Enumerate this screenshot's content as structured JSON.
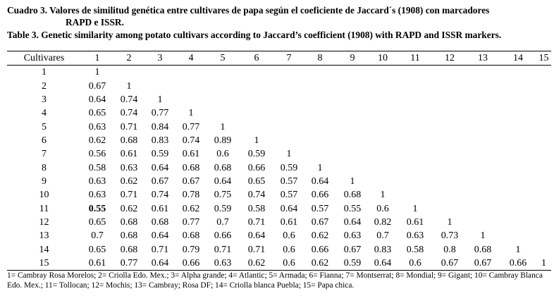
{
  "caption": {
    "es_line1": "Cuadro 3. Valores de similitud genética entre cultivares de papa según el coeficiente de Jaccard´s (1908) con marcadores",
    "es_line2": "RAPD e ISSR.",
    "en": "Table 3. Genetic similarity among potato cultivars according to Jaccard’s coefficient (1908) with RAPD and ISSR markers."
  },
  "table": {
    "row_header_label": "Cultivares",
    "column_headers": [
      "1",
      "2",
      "3",
      "4",
      "5",
      "6",
      "7",
      "8",
      "9",
      "10",
      "11",
      "12",
      "13",
      "14",
      "15"
    ],
    "rows": [
      {
        "label": "1",
        "values": [
          "1"
        ]
      },
      {
        "label": "2",
        "values": [
          "0.67",
          "1"
        ]
      },
      {
        "label": "3",
        "values": [
          "0.64",
          "0.74",
          "1"
        ]
      },
      {
        "label": "4",
        "values": [
          "0.65",
          "0.74",
          "0.77",
          "1"
        ]
      },
      {
        "label": "5",
        "values": [
          "0.63",
          "0.71",
          "0.84",
          "0.77",
          "1"
        ]
      },
      {
        "label": "6",
        "values": [
          "0.62",
          "0.68",
          "0.83",
          "0.74",
          "0.89",
          "1"
        ]
      },
      {
        "label": "7",
        "values": [
          "0.56",
          "0.61",
          "0.59",
          "0.61",
          "0.6",
          "0.59",
          "1"
        ]
      },
      {
        "label": "8",
        "values": [
          "0.58",
          "0.63",
          "0.64",
          "0.68",
          "0.68",
          "0.66",
          "0.59",
          "1"
        ]
      },
      {
        "label": "9",
        "values": [
          "0.63",
          "0.62",
          "0.67",
          "0.67",
          "0.64",
          "0.65",
          "0.57",
          "0.64",
          "1"
        ]
      },
      {
        "label": "10",
        "values": [
          "0.63",
          "0.71",
          "0.74",
          "0.78",
          "0.75",
          "0.74",
          "0.57",
          "0.66",
          "0.68",
          "1"
        ]
      },
      {
        "label": "11",
        "values": [
          "0.55",
          "0.62",
          "0.61",
          "0.62",
          "0.59",
          "0.58",
          "0.64",
          "0.57",
          "0.55",
          "0.6",
          "1"
        ]
      },
      {
        "label": "12",
        "values": [
          "0.65",
          "0.68",
          "0.68",
          "0.77",
          "0.7",
          "0.71",
          "0.61",
          "0.67",
          "0.64",
          "0.82",
          "0.61",
          "1"
        ]
      },
      {
        "label": "13",
        "values": [
          "0.7",
          "0.68",
          "0.64",
          "0.68",
          "0.66",
          "0.64",
          "0.6",
          "0.62",
          "0.63",
          "0.7",
          "0.63",
          "0.73",
          "1"
        ]
      },
      {
        "label": "14",
        "values": [
          "0.65",
          "0.68",
          "0.71",
          "0.79",
          "0.71",
          "0.71",
          "0.6",
          "0.66",
          "0.67",
          "0.83",
          "0.58",
          "0.8",
          "0.68",
          "1"
        ]
      },
      {
        "label": "15",
        "values": [
          "0.61",
          "0.77",
          "0.64",
          "0.66",
          "0.63",
          "0.62",
          "0.6",
          "0.62",
          "0.59",
          "0.64",
          "0.6",
          "0.67",
          "0.67",
          "0.66",
          "1"
        ]
      }
    ],
    "bold_cells": [
      {
        "row": 10,
        "col": 0
      }
    ]
  },
  "footnote": "1= Cambray Rosa Morelos; 2= Criolla Edo. Mex.; 3= Alpha grande; 4= Atlantic; 5= Armada; 6= Fianna; 7= Montserrat; 8= Mondial; 9= Gigant; 10= Cambray Blanca Edo. Mex.; 11= Tollocan; 12= Mochis; 13= Cambray; Rosa DF; 14= Criolla blanca Puebla; 15= Papa chica."
}
